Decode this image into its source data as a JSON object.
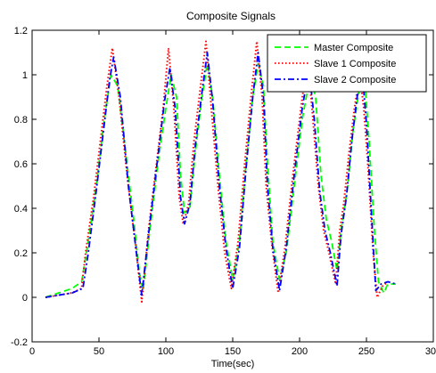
{
  "chart_data": {
    "type": "line",
    "title": "Composite Signals",
    "xlabel": "Time(sec)",
    "ylabel": "",
    "xlim": [
      0,
      300
    ],
    "ylim": [
      -0.2,
      1.2
    ],
    "xticks": [
      0,
      50,
      100,
      150,
      200,
      250,
      300
    ],
    "yticks": [
      -0.2,
      0,
      0.2,
      0.4,
      0.6,
      0.8,
      1,
      1.2
    ],
    "xtick_labels": [
      "0",
      "50",
      "100",
      "150",
      "200",
      "250",
      "300"
    ],
    "ytick_labels": [
      "-0.2",
      "0",
      "0.2",
      "0.4",
      "0.6",
      "0.8",
      "1",
      "1.2"
    ],
    "grid": false,
    "legend_position": "top-right",
    "series": [
      {
        "name": "Master Composite",
        "color": "#00ff00",
        "dash": "dashed",
        "points": [
          [
            10,
            0
          ],
          [
            20,
            0.02
          ],
          [
            30,
            0.04
          ],
          [
            37,
            0.07
          ],
          [
            42,
            0.25
          ],
          [
            48,
            0.5
          ],
          [
            54,
            0.8
          ],
          [
            59,
            1.0
          ],
          [
            64,
            0.95
          ],
          [
            70,
            0.65
          ],
          [
            76,
            0.35
          ],
          [
            80,
            0.12
          ],
          [
            83,
            0.03
          ],
          [
            88,
            0.3
          ],
          [
            94,
            0.6
          ],
          [
            100,
            0.85
          ],
          [
            104,
            1.0
          ],
          [
            108,
            0.9
          ],
          [
            111,
            0.55
          ],
          [
            114,
            0.38
          ],
          [
            118,
            0.4
          ],
          [
            122,
            0.65
          ],
          [
            127,
            0.9
          ],
          [
            131,
            1.05
          ],
          [
            135,
            0.9
          ],
          [
            140,
            0.55
          ],
          [
            145,
            0.25
          ],
          [
            150,
            0.08
          ],
          [
            155,
            0.25
          ],
          [
            160,
            0.6
          ],
          [
            165,
            0.9
          ],
          [
            169,
            1.05
          ],
          [
            173,
            0.95
          ],
          [
            176,
            0.6
          ],
          [
            180,
            0.25
          ],
          [
            185,
            0.08
          ],
          [
            190,
            0.2
          ],
          [
            196,
            0.5
          ],
          [
            202,
            0.8
          ],
          [
            208,
            1.0
          ],
          [
            212,
            0.9
          ],
          [
            216,
            0.55
          ],
          [
            220,
            0.35
          ],
          [
            224,
            0.25
          ],
          [
            228,
            0.12
          ],
          [
            231,
            0.3
          ],
          [
            236,
            0.5
          ],
          [
            240,
            0.75
          ],
          [
            245,
            0.95
          ],
          [
            249,
            0.95
          ],
          [
            252,
            0.7
          ],
          [
            256,
            0.3
          ],
          [
            259,
            0.07
          ],
          [
            263,
            0.02
          ],
          [
            266,
            0.06
          ],
          [
            272,
            0.06
          ]
        ]
      },
      {
        "name": "Slave 1 Composite",
        "color": "#ff0000",
        "dash": "dotted",
        "points": [
          [
            10,
            0
          ],
          [
            20,
            0.01
          ],
          [
            30,
            0.02
          ],
          [
            37,
            0.04
          ],
          [
            40,
            0.2
          ],
          [
            46,
            0.45
          ],
          [
            52,
            0.75
          ],
          [
            56,
            0.95
          ],
          [
            60,
            1.12
          ],
          [
            65,
            0.9
          ],
          [
            71,
            0.55
          ],
          [
            77,
            0.25
          ],
          [
            82,
            -0.02
          ],
          [
            87,
            0.3
          ],
          [
            93,
            0.6
          ],
          [
            98,
            0.85
          ],
          [
            102,
            1.12
          ],
          [
            106,
            0.85
          ],
          [
            110,
            0.45
          ],
          [
            113,
            0.33
          ],
          [
            117,
            0.42
          ],
          [
            121,
            0.7
          ],
          [
            126,
            0.95
          ],
          [
            130,
            1.15
          ],
          [
            134,
            0.85
          ],
          [
            139,
            0.5
          ],
          [
            144,
            0.2
          ],
          [
            149,
            0.04
          ],
          [
            154,
            0.25
          ],
          [
            159,
            0.6
          ],
          [
            164,
            0.92
          ],
          [
            168,
            1.15
          ],
          [
            172,
            0.9
          ],
          [
            175,
            0.5
          ],
          [
            179,
            0.25
          ],
          [
            184,
            0.02
          ],
          [
            189,
            0.22
          ],
          [
            195,
            0.55
          ],
          [
            201,
            0.85
          ],
          [
            206,
            1.08
          ],
          [
            210,
            0.8
          ],
          [
            214,
            0.5
          ],
          [
            218,
            0.3
          ],
          [
            222,
            0.2
          ],
          [
            227,
            0.06
          ],
          [
            230,
            0.3
          ],
          [
            233,
            0.42
          ],
          [
            237,
            0.65
          ],
          [
            241,
            0.85
          ],
          [
            245,
            1.0
          ],
          [
            248,
            0.85
          ],
          [
            251,
            0.6
          ],
          [
            255,
            0.2
          ],
          [
            258,
            0.0
          ],
          [
            262,
            0.05
          ],
          [
            266,
            0.07
          ]
        ]
      },
      {
        "name": "Slave 2 Composite",
        "color": "#0000ff",
        "dash": "dashdot",
        "points": [
          [
            10,
            0
          ],
          [
            20,
            0.01
          ],
          [
            30,
            0.02
          ],
          [
            38,
            0.04
          ],
          [
            42,
            0.2
          ],
          [
            48,
            0.48
          ],
          [
            54,
            0.78
          ],
          [
            58,
            0.98
          ],
          [
            61,
            1.08
          ],
          [
            66,
            0.9
          ],
          [
            72,
            0.5
          ],
          [
            78,
            0.2
          ],
          [
            82,
            0.01
          ],
          [
            87,
            0.28
          ],
          [
            93,
            0.58
          ],
          [
            99,
            0.88
          ],
          [
            103,
            1.03
          ],
          [
            107,
            0.85
          ],
          [
            111,
            0.45
          ],
          [
            114,
            0.33
          ],
          [
            118,
            0.42
          ],
          [
            122,
            0.68
          ],
          [
            127,
            0.92
          ],
          [
            131,
            1.1
          ],
          [
            135,
            0.88
          ],
          [
            140,
            0.5
          ],
          [
            145,
            0.22
          ],
          [
            150,
            0.04
          ],
          [
            155,
            0.22
          ],
          [
            160,
            0.58
          ],
          [
            165,
            0.9
          ],
          [
            169,
            1.1
          ],
          [
            173,
            0.9
          ],
          [
            176,
            0.5
          ],
          [
            180,
            0.22
          ],
          [
            185,
            0.03
          ],
          [
            190,
            0.22
          ],
          [
            196,
            0.55
          ],
          [
            202,
            0.85
          ],
          [
            207,
            1.03
          ],
          [
            211,
            0.8
          ],
          [
            215,
            0.48
          ],
          [
            219,
            0.3
          ],
          [
            223,
            0.2
          ],
          [
            228,
            0.05
          ],
          [
            231,
            0.28
          ],
          [
            235,
            0.45
          ],
          [
            239,
            0.7
          ],
          [
            243,
            0.9
          ],
          [
            247,
            1.0
          ],
          [
            250,
            0.78
          ],
          [
            254,
            0.35
          ],
          [
            257,
            0.03
          ],
          [
            261,
            0.06
          ],
          [
            266,
            0.07
          ],
          [
            272,
            0.06
          ]
        ]
      }
    ]
  }
}
